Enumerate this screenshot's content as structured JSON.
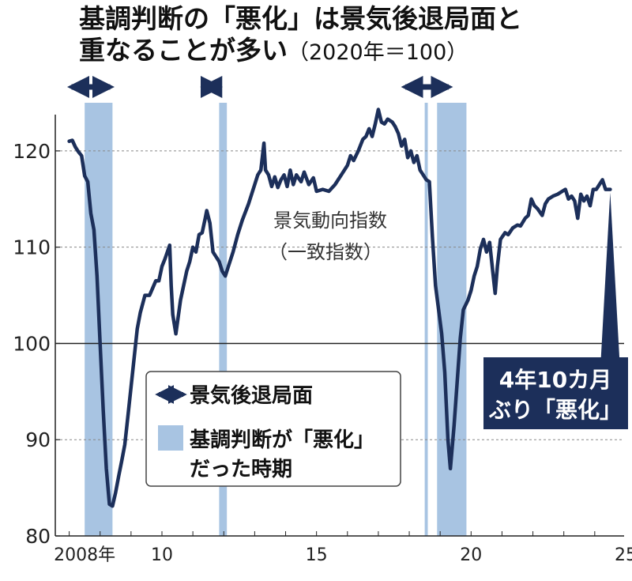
{
  "title": {
    "line1": "基調判断の「悪化」は景気後退局面と",
    "line2": "重なることが多い",
    "unit": "（2020年＝100）"
  },
  "colors": {
    "line": "#1c2f5a",
    "band": "#a8c4e2",
    "callout_bg": "#1c2f5a",
    "grid": "#888888"
  },
  "chart_data": {
    "type": "line",
    "series": [
      {
        "name": "景気動向指数（一致指数）",
        "points": [
          [
            2008.0,
            121.0
          ],
          [
            2008.1,
            121.1
          ],
          [
            2008.2,
            120.4
          ],
          [
            2008.3,
            119.9
          ],
          [
            2008.4,
            119.5
          ],
          [
            2008.5,
            117.4
          ],
          [
            2008.6,
            116.8
          ],
          [
            2008.7,
            113.5
          ],
          [
            2008.8,
            111.8
          ],
          [
            2008.9,
            107.0
          ],
          [
            2009.0,
            100.0
          ],
          [
            2009.1,
            93.0
          ],
          [
            2009.2,
            87.0
          ],
          [
            2009.3,
            83.3
          ],
          [
            2009.4,
            83.1
          ],
          [
            2009.5,
            84.5
          ],
          [
            2009.6,
            86.2
          ],
          [
            2009.7,
            87.8
          ],
          [
            2009.8,
            89.5
          ],
          [
            2009.9,
            92.5
          ],
          [
            2010.0,
            95.5
          ],
          [
            2010.1,
            98.5
          ],
          [
            2010.2,
            101.5
          ],
          [
            2010.3,
            103.2
          ],
          [
            2010.45,
            105.0
          ],
          [
            2010.6,
            105.0
          ],
          [
            2010.8,
            106.5
          ],
          [
            2010.9,
            106.5
          ],
          [
            2011.0,
            108.0
          ],
          [
            2011.1,
            108.8
          ],
          [
            2011.25,
            110.2
          ],
          [
            2011.3,
            106.0
          ],
          [
            2011.35,
            103.0
          ],
          [
            2011.45,
            101.0
          ],
          [
            2011.6,
            104.5
          ],
          [
            2011.8,
            107.5
          ],
          [
            2011.9,
            108.5
          ],
          [
            2012.0,
            110.0
          ],
          [
            2012.1,
            109.5
          ],
          [
            2012.2,
            111.3
          ],
          [
            2012.3,
            111.5
          ],
          [
            2012.4,
            113.0
          ],
          [
            2012.45,
            113.8
          ],
          [
            2012.55,
            112.5
          ],
          [
            2012.65,
            109.5
          ],
          [
            2012.75,
            109.0
          ],
          [
            2012.85,
            108.5
          ],
          [
            2012.95,
            107.5
          ],
          [
            2013.05,
            107.0
          ],
          [
            2013.15,
            108.0
          ],
          [
            2013.3,
            109.5
          ],
          [
            2013.45,
            111.3
          ],
          [
            2013.6,
            112.8
          ],
          [
            2013.8,
            114.5
          ],
          [
            2014.0,
            116.5
          ],
          [
            2014.1,
            117.5
          ],
          [
            2014.2,
            118.0
          ],
          [
            2014.3,
            120.8
          ],
          [
            2014.35,
            118.0
          ],
          [
            2014.45,
            117.5
          ],
          [
            2014.55,
            116.3
          ],
          [
            2014.65,
            117.3
          ],
          [
            2014.75,
            116.2
          ],
          [
            2014.85,
            117.0
          ],
          [
            2014.95,
            117.5
          ],
          [
            2015.05,
            116.3
          ],
          [
            2015.15,
            118.0
          ],
          [
            2015.25,
            116.5
          ],
          [
            2015.35,
            117.5
          ],
          [
            2015.5,
            116.8
          ],
          [
            2015.6,
            117.8
          ],
          [
            2015.75,
            116.5
          ],
          [
            2015.9,
            117.2
          ],
          [
            2016.0,
            115.8
          ],
          [
            2016.2,
            116.0
          ],
          [
            2016.4,
            115.8
          ],
          [
            2016.6,
            116.5
          ],
          [
            2016.8,
            117.5
          ],
          [
            2017.0,
            118.5
          ],
          [
            2017.1,
            119.5
          ],
          [
            2017.2,
            119.0
          ],
          [
            2017.35,
            120.0
          ],
          [
            2017.5,
            121.2
          ],
          [
            2017.6,
            121.5
          ],
          [
            2017.7,
            122.3
          ],
          [
            2017.8,
            121.5
          ],
          [
            2017.9,
            122.8
          ],
          [
            2018.0,
            124.3
          ],
          [
            2018.1,
            123.0
          ],
          [
            2018.2,
            122.8
          ],
          [
            2018.3,
            123.3
          ],
          [
            2018.45,
            123.0
          ],
          [
            2018.55,
            122.5
          ],
          [
            2018.65,
            121.8
          ],
          [
            2018.75,
            120.5
          ],
          [
            2018.85,
            121.2
          ],
          [
            2018.95,
            119.3
          ],
          [
            2019.05,
            120.0
          ],
          [
            2019.15,
            118.8
          ],
          [
            2019.25,
            119.5
          ],
          [
            2019.35,
            118.0
          ],
          [
            2019.45,
            117.5
          ],
          [
            2019.55,
            117.0
          ],
          [
            2019.65,
            116.8
          ],
          [
            2019.75,
            111.0
          ],
          [
            2019.85,
            106.0
          ],
          [
            2019.95,
            103.5
          ],
          [
            2020.05,
            101.0
          ],
          [
            2020.15,
            97.0
          ],
          [
            2020.25,
            90.0
          ],
          [
            2020.33,
            87.0
          ],
          [
            2020.45,
            91.5
          ],
          [
            2020.55,
            96.0
          ],
          [
            2020.65,
            100.5
          ],
          [
            2020.75,
            103.5
          ],
          [
            2020.9,
            104.5
          ],
          [
            2021.0,
            105.5
          ],
          [
            2021.1,
            107.0
          ],
          [
            2021.2,
            108.0
          ],
          [
            2021.3,
            109.8
          ],
          [
            2021.4,
            110.8
          ],
          [
            2021.5,
            109.5
          ],
          [
            2021.6,
            110.5
          ],
          [
            2021.7,
            107.5
          ],
          [
            2021.78,
            105.2
          ],
          [
            2021.85,
            108.0
          ],
          [
            2021.95,
            110.8
          ],
          [
            2022.1,
            111.5
          ],
          [
            2022.2,
            111.3
          ],
          [
            2022.35,
            112.0
          ],
          [
            2022.5,
            112.3
          ],
          [
            2022.6,
            112.2
          ],
          [
            2022.75,
            113.0
          ],
          [
            2022.85,
            113.3
          ],
          [
            2022.95,
            115.0
          ],
          [
            2023.05,
            114.3
          ],
          [
            2023.15,
            114.0
          ],
          [
            2023.3,
            113.3
          ],
          [
            2023.4,
            114.5
          ],
          [
            2023.5,
            115.0
          ],
          [
            2023.65,
            115.3
          ],
          [
            2023.8,
            115.5
          ],
          [
            2023.95,
            115.8
          ],
          [
            2024.05,
            116.0
          ],
          [
            2024.15,
            115.0
          ],
          [
            2024.25,
            115.3
          ],
          [
            2024.35,
            114.8
          ],
          [
            2024.45,
            113.0
          ],
          [
            2024.55,
            115.5
          ],
          [
            2024.65,
            114.8
          ],
          [
            2024.75,
            115.3
          ],
          [
            2024.85,
            114.3
          ],
          [
            2024.95,
            116.0
          ],
          [
            2025.05,
            116.0
          ],
          [
            2025.15,
            116.5
          ],
          [
            2025.25,
            117.0
          ],
          [
            2025.35,
            116.0
          ],
          [
            2025.5,
            116.0
          ]
        ]
      }
    ],
    "deterioration_periods": [
      [
        2008.5,
        2009.4
      ],
      [
        2012.85,
        2013.1
      ],
      [
        2019.5,
        2019.6
      ],
      [
        2019.9,
        2020.85
      ]
    ],
    "recession_periods": [
      [
        2008.0,
        2009.4
      ],
      [
        2012.3,
        2012.9
      ],
      [
        2018.8,
        2020.35
      ]
    ],
    "series_label": "景気動向指数",
    "series_label2": "（一致指数）",
    "xlim": [
      2007.55,
      2025.95
    ],
    "ylim": [
      80,
      125
    ],
    "y_ticks": [
      80,
      90,
      100,
      110,
      120
    ],
    "y_gridlines": [
      90,
      110,
      120
    ],
    "y_baseline": 100,
    "x_ticks": [
      {
        "value": 2008.5,
        "label": "2008年"
      },
      {
        "value": 2011.0,
        "label": "10"
      },
      {
        "value": 2016.0,
        "label": "15"
      },
      {
        "value": 2021.0,
        "label": "20"
      },
      {
        "value": 2026.0,
        "label": "25"
      }
    ],
    "legend": {
      "position": "bottom-center",
      "recession_label": "景気後退局面",
      "deterioration_label_1": "基調判断が「悪化」",
      "deterioration_label_2": "だった時期"
    },
    "annotation": {
      "line1": "4年10カ月",
      "line2": "ぶり「悪化」",
      "x": 2025.5,
      "y": 116.0
    }
  }
}
